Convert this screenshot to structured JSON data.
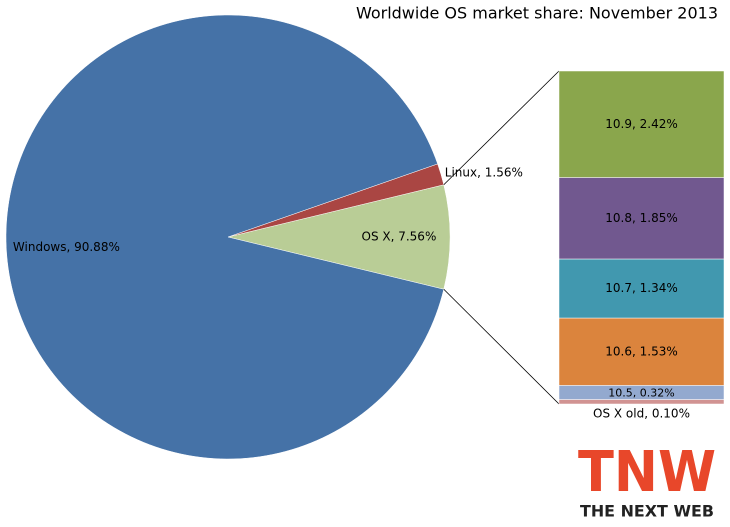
{
  "chart_data": {
    "type": "pie",
    "title": "Worldwide OS market share: November 2013",
    "values": [
      90.88,
      1.56,
      7.56
    ],
    "value_labels": [
      "Windows, 90.88%",
      "Linux, 1.56%",
      "OS X, 7.56%"
    ],
    "colors": [
      "#4572a7",
      "#aa4643",
      "#b9cd96"
    ],
    "breakdown": {
      "type": "bar",
      "values": [
        2.42,
        1.85,
        1.34,
        1.53,
        0.32,
        0.1
      ],
      "value_labels": [
        "10.9, 2.42%",
        "10.8, 1.85%",
        "10.7, 1.34%",
        "10.6, 1.53%",
        "10.5, 0.32%",
        "OS X old, 0.10%"
      ],
      "colors": [
        "#8aa64c",
        "#71588f",
        "#4198af",
        "#db843d",
        "#93a9cf",
        "#d19392"
      ]
    }
  },
  "logo": {
    "mark": "TNW",
    "text": "THE NEXT WEB"
  }
}
